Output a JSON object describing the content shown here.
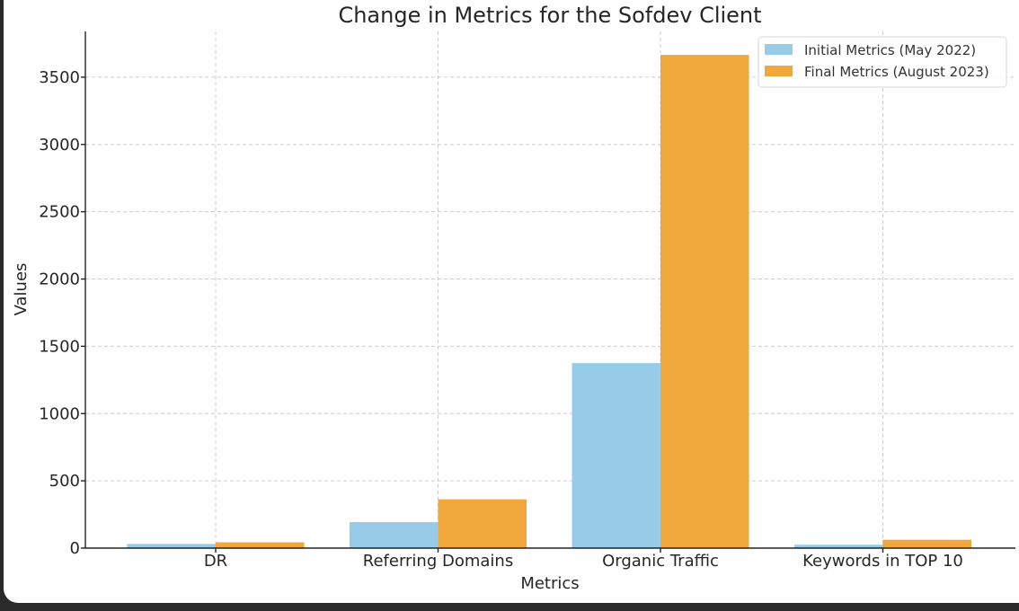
{
  "chart_data": {
    "type": "bar",
    "title": "Change in Metrics for the Sofdev Client",
    "xlabel": "Metrics",
    "ylabel": "Values",
    "categories": [
      "DR",
      "Referring Domains",
      "Organic Traffic",
      "Keywords in TOP 10"
    ],
    "series": [
      {
        "name": "Initial Metrics (May 2022)",
        "values": [
          31,
          193,
          1375,
          25
        ],
        "color": "#97cce8"
      },
      {
        "name": "Final Metrics (August 2023)",
        "values": [
          43,
          363,
          3666,
          62
        ],
        "color": "#f0a83c"
      }
    ],
    "ylim": [
      0,
      3840
    ],
    "yticks": [
      0,
      500,
      1000,
      1500,
      2000,
      2500,
      3000,
      3500
    ],
    "grid": true,
    "legend": "top-right"
  }
}
